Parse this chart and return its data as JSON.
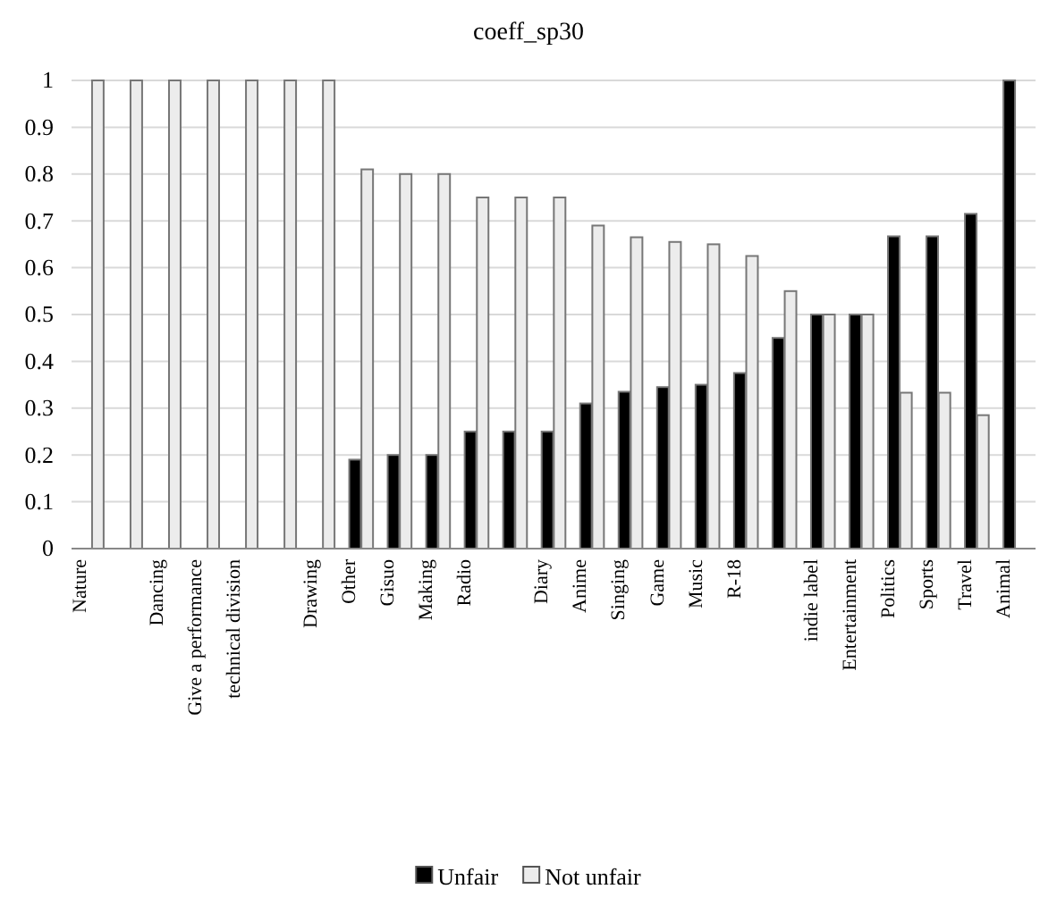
{
  "chart_data": {
    "type": "bar",
    "title": "coeff_sp30",
    "categories": [
      "Nature",
      null,
      "Dancing",
      "Give a performance",
      "technical division",
      null,
      "Drawing",
      "Other",
      "Gisuo",
      "Making",
      "Radio",
      null,
      "Diary",
      "Anime",
      "Singing",
      "Game",
      "Music",
      "R-18",
      null,
      "indie label",
      "Entertainment",
      "Politics",
      "Sports",
      "Travel",
      "Animal"
    ],
    "series": [
      {
        "name": "Unfair",
        "color": "#000000",
        "values": [
          0,
          0,
          0,
          0,
          0,
          0,
          0,
          0.19,
          0.2,
          0.2,
          0.25,
          0.25,
          0.25,
          0.31,
          0.335,
          0.345,
          0.35,
          0.375,
          0.45,
          0.5,
          0.5,
          0.667,
          0.667,
          0.715,
          1
        ]
      },
      {
        "name": "Not unfair",
        "color": "#ececec",
        "values": [
          1,
          1,
          1,
          1,
          1,
          1,
          1,
          0.81,
          0.8,
          0.8,
          0.75,
          0.75,
          0.75,
          0.69,
          0.665,
          0.655,
          0.65,
          0.625,
          0.55,
          0.5,
          0.5,
          0.333,
          0.333,
          0.285,
          0
        ]
      }
    ],
    "ylim": [
      0,
      1
    ],
    "yticks": [
      0,
      0.1,
      0.2,
      0.3,
      0.4,
      0.5,
      0.6,
      0.7,
      0.8,
      0.9,
      1
    ],
    "grid": "y",
    "legend": "bottom"
  }
}
